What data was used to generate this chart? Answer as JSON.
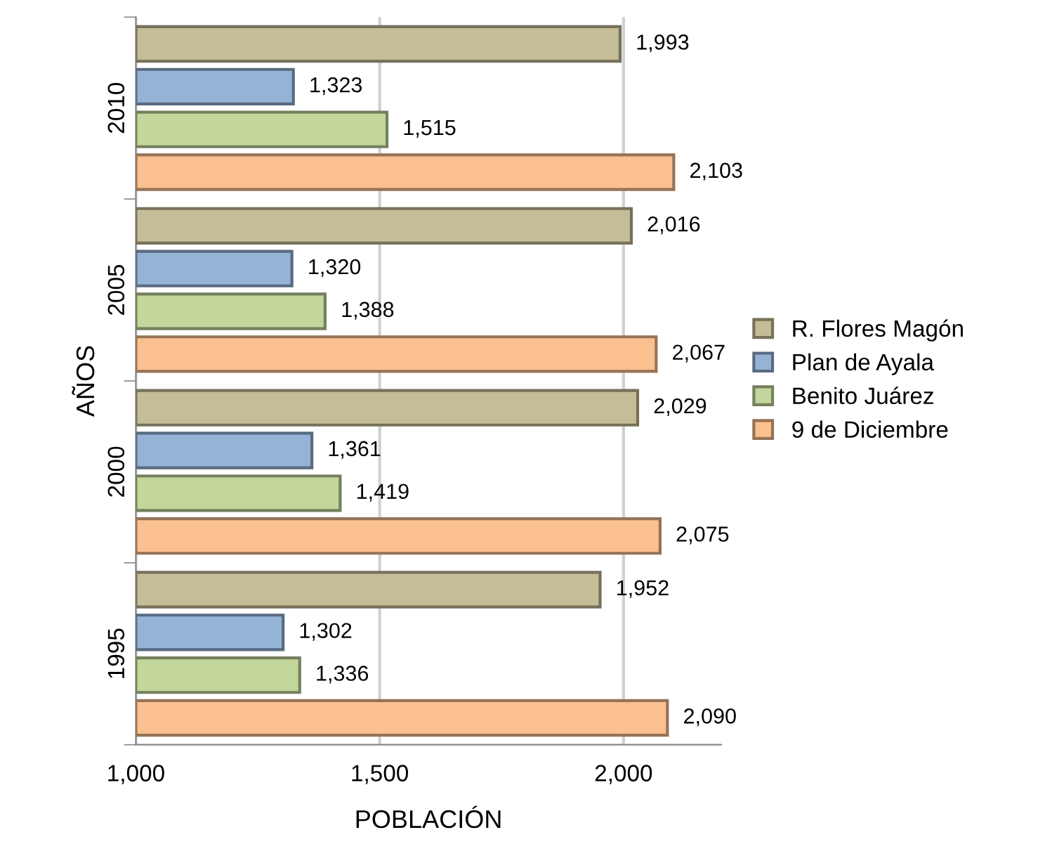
{
  "chart_data": {
    "type": "bar",
    "orientation": "horizontal",
    "xlabel": "POBLACIÓN",
    "ylabel": "AÑOS",
    "categories": [
      "2010",
      "2005",
      "2000",
      "1995"
    ],
    "series": [
      {
        "name": "R. Flores Magón",
        "color": "#c4bd97",
        "values": [
          1993,
          2016,
          2029,
          1952
        ],
        "value_labels": [
          "1,993",
          "2,016",
          "2,029",
          "1,952"
        ]
      },
      {
        "name": "Plan de Ayala",
        "color": "#95b3d7",
        "values": [
          1323,
          1320,
          1361,
          1302
        ],
        "value_labels": [
          "1,323",
          "1,320",
          "1,361",
          "1,302"
        ]
      },
      {
        "name": "Benito Juárez",
        "color": "#c3d69b",
        "values": [
          1515,
          1388,
          1419,
          1336
        ],
        "value_labels": [
          "1,515",
          "1,388",
          "1,419",
          "1,336"
        ]
      },
      {
        "name": "9 de Diciembre",
        "color": "#fac090",
        "values": [
          2103,
          2067,
          2075,
          2090
        ],
        "value_labels": [
          "2,103",
          "2,067",
          "2,075",
          "2,090"
        ]
      }
    ],
    "xlim": [
      1000,
      2200
    ],
    "xticks": [
      {
        "value": 1000,
        "label": "1,000"
      },
      {
        "value": 1500,
        "label": "1,500"
      },
      {
        "value": 2000,
        "label": "2,000"
      }
    ],
    "grid": "x",
    "legend": "right"
  }
}
